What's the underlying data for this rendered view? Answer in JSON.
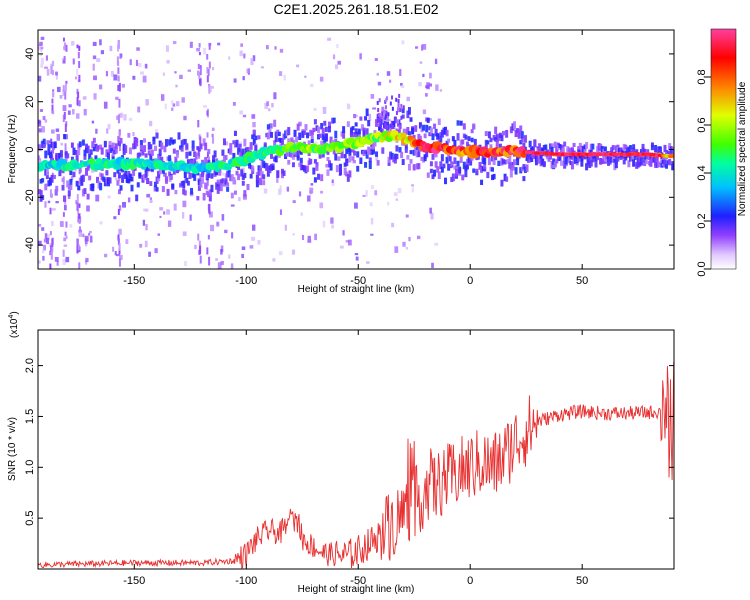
{
  "chart_data": [
    {
      "type": "heatmap",
      "title": "C2E1.2025.261.18.51.E02",
      "xlabel": "Height of straight line (km)",
      "ylabel": "Frequency (Hz)",
      "xlim": [
        -193,
        91
      ],
      "ylim": [
        -50,
        50
      ],
      "xticks": [
        -150,
        -100,
        -50,
        0,
        50
      ],
      "yticks": [
        -40,
        -20,
        0,
        20,
        40
      ],
      "colorbar": {
        "label": "Normalized spectral amplitude",
        "range": [
          0,
          1
        ],
        "ticks": [
          0.0,
          0.2,
          0.4,
          0.6,
          0.8
        ],
        "colors": [
          "#ffffff",
          "#c8a0ff",
          "#8000ff",
          "#1010ff",
          "#00c0ff",
          "#00ff80",
          "#80ff00",
          "#ffff00",
          "#ff8000",
          "#ff0000",
          "#ff40a0"
        ]
      },
      "ridge": {
        "x": [
          -193,
          -170,
          -150,
          -130,
          -120,
          -110,
          -100,
          -90,
          -80,
          -70,
          -60,
          -50,
          -40,
          -33,
          -25,
          -20,
          -10,
          0,
          10,
          20,
          40,
          60,
          80,
          91
        ],
        "y": [
          -7,
          -6,
          -6,
          -7,
          -8,
          -7,
          -4,
          -1,
          1,
          0,
          1,
          3,
          5,
          6,
          3,
          1,
          0,
          -1,
          -1,
          -1,
          -2,
          -2,
          -2,
          -3
        ],
        "amplitude": [
          0.42,
          0.45,
          0.44,
          0.46,
          0.4,
          0.45,
          0.48,
          0.5,
          0.55,
          0.6,
          0.55,
          0.58,
          0.62,
          0.68,
          0.8,
          0.95,
          0.9,
          0.88,
          0.92,
          0.95,
          0.98,
          1.0,
          0.98,
          0.7
        ]
      }
    },
    {
      "type": "line",
      "title": "",
      "xlabel": "Height of straight line (km)",
      "ylabel": "SNR (10 * v/v)",
      "yscale_label": "(x10",
      "yscale_exp": "4",
      "xlim": [
        -193,
        91
      ],
      "ylim": [
        0,
        2.35
      ],
      "xticks": [
        -150,
        -100,
        -50,
        0,
        50
      ],
      "yticks": [
        0.5,
        1.0,
        1.5,
        2.0
      ],
      "ytick_labels": [
        "0.5",
        "1.0",
        "1.5",
        "2.0"
      ],
      "series": [
        {
          "name": "SNR",
          "color": "#e83030",
          "x": [
            -193,
            -150,
            -120,
            -105,
            -100,
            -95,
            -90,
            -85,
            -80,
            -78,
            -75,
            -70,
            -65,
            -60,
            -55,
            -50,
            -45,
            -40,
            -35,
            -32,
            -28,
            -25,
            -20,
            -18,
            -15,
            -12,
            -8,
            -5,
            0,
            5,
            10,
            15,
            20,
            25,
            30,
            40,
            50,
            60,
            70,
            80,
            85,
            88,
            89,
            91
          ],
          "y": [
            0.04,
            0.06,
            0.06,
            0.08,
            0.15,
            0.3,
            0.38,
            0.35,
            0.45,
            0.5,
            0.3,
            0.22,
            0.15,
            0.14,
            0.13,
            0.18,
            0.25,
            0.35,
            0.45,
            0.5,
            0.6,
            0.65,
            0.75,
            0.85,
            0.8,
            0.88,
            0.9,
            0.95,
            1.0,
            1.05,
            1.0,
            1.1,
            1.25,
            1.35,
            1.45,
            1.52,
            1.55,
            1.53,
            1.53,
            1.54,
            1.55,
            1.6,
            1.1,
            1.4
          ]
        }
      ]
    }
  ]
}
